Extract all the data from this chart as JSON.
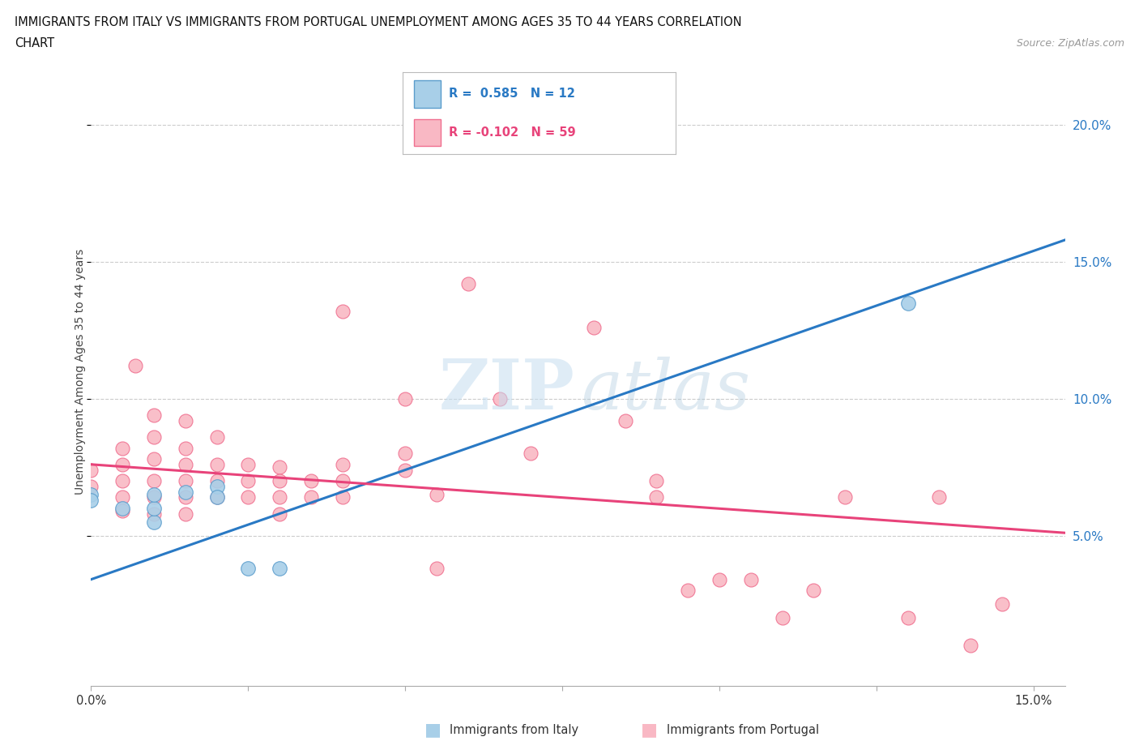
{
  "title_line1": "IMMIGRANTS FROM ITALY VS IMMIGRANTS FROM PORTUGAL UNEMPLOYMENT AMONG AGES 35 TO 44 YEARS CORRELATION",
  "title_line2": "CHART",
  "source": "Source: ZipAtlas.com",
  "ylabel": "Unemployment Among Ages 35 to 44 years",
  "xlim": [
    0.0,
    0.155
  ],
  "ylim": [
    -0.005,
    0.225
  ],
  "yticks": [
    0.05,
    0.1,
    0.15,
    0.2
  ],
  "ytick_labels": [
    "5.0%",
    "10.0%",
    "15.0%",
    "20.0%"
  ],
  "xticks": [
    0.0,
    0.025,
    0.05,
    0.075,
    0.1,
    0.125,
    0.15
  ],
  "xtick_labels": [
    "0.0%",
    "",
    "",
    "",
    "",
    "",
    "15.0%"
  ],
  "italy_color": "#a8cfe8",
  "portugal_color": "#f9b8c4",
  "italy_edge_color": "#5b9dcc",
  "portugal_edge_color": "#f07090",
  "trend_italy_color": "#2979c4",
  "trend_portugal_color": "#e8437a",
  "legend_italy_text": "R =  0.585   N = 12",
  "legend_portugal_text": "R = -0.102   N = 59",
  "italy_points": [
    [
      0.0,
      0.065
    ],
    [
      0.0,
      0.063
    ],
    [
      0.005,
      0.06
    ],
    [
      0.01,
      0.055
    ],
    [
      0.01,
      0.06
    ],
    [
      0.01,
      0.065
    ],
    [
      0.015,
      0.066
    ],
    [
      0.02,
      0.068
    ],
    [
      0.02,
      0.064
    ],
    [
      0.025,
      0.038
    ],
    [
      0.03,
      0.038
    ],
    [
      0.13,
      0.135
    ]
  ],
  "portugal_points": [
    [
      0.0,
      0.068
    ],
    [
      0.0,
      0.074
    ],
    [
      0.005,
      0.082
    ],
    [
      0.005,
      0.076
    ],
    [
      0.005,
      0.07
    ],
    [
      0.005,
      0.064
    ],
    [
      0.005,
      0.059
    ],
    [
      0.007,
      0.112
    ],
    [
      0.01,
      0.094
    ],
    [
      0.01,
      0.086
    ],
    [
      0.01,
      0.078
    ],
    [
      0.01,
      0.07
    ],
    [
      0.01,
      0.064
    ],
    [
      0.01,
      0.058
    ],
    [
      0.015,
      0.092
    ],
    [
      0.015,
      0.082
    ],
    [
      0.015,
      0.076
    ],
    [
      0.015,
      0.07
    ],
    [
      0.015,
      0.064
    ],
    [
      0.015,
      0.058
    ],
    [
      0.02,
      0.086
    ],
    [
      0.02,
      0.076
    ],
    [
      0.02,
      0.07
    ],
    [
      0.02,
      0.064
    ],
    [
      0.025,
      0.076
    ],
    [
      0.025,
      0.07
    ],
    [
      0.025,
      0.064
    ],
    [
      0.03,
      0.075
    ],
    [
      0.03,
      0.07
    ],
    [
      0.03,
      0.064
    ],
    [
      0.03,
      0.058
    ],
    [
      0.035,
      0.07
    ],
    [
      0.035,
      0.064
    ],
    [
      0.04,
      0.132
    ],
    [
      0.04,
      0.076
    ],
    [
      0.04,
      0.07
    ],
    [
      0.04,
      0.064
    ],
    [
      0.05,
      0.1
    ],
    [
      0.05,
      0.08
    ],
    [
      0.05,
      0.074
    ],
    [
      0.055,
      0.065
    ],
    [
      0.055,
      0.038
    ],
    [
      0.06,
      0.142
    ],
    [
      0.065,
      0.1
    ],
    [
      0.07,
      0.08
    ],
    [
      0.08,
      0.126
    ],
    [
      0.085,
      0.092
    ],
    [
      0.09,
      0.07
    ],
    [
      0.09,
      0.064
    ],
    [
      0.095,
      0.03
    ],
    [
      0.1,
      0.034
    ],
    [
      0.105,
      0.034
    ],
    [
      0.11,
      0.02
    ],
    [
      0.115,
      0.03
    ],
    [
      0.12,
      0.064
    ],
    [
      0.13,
      0.02
    ],
    [
      0.135,
      0.064
    ],
    [
      0.14,
      0.01
    ],
    [
      0.145,
      0.025
    ]
  ],
  "italy_trendline": [
    [
      0.0,
      0.034
    ],
    [
      0.155,
      0.158
    ]
  ],
  "portugal_trendline": [
    [
      0.0,
      0.076
    ],
    [
      0.155,
      0.051
    ]
  ],
  "background_color": "#ffffff",
  "grid_color": "#cccccc"
}
